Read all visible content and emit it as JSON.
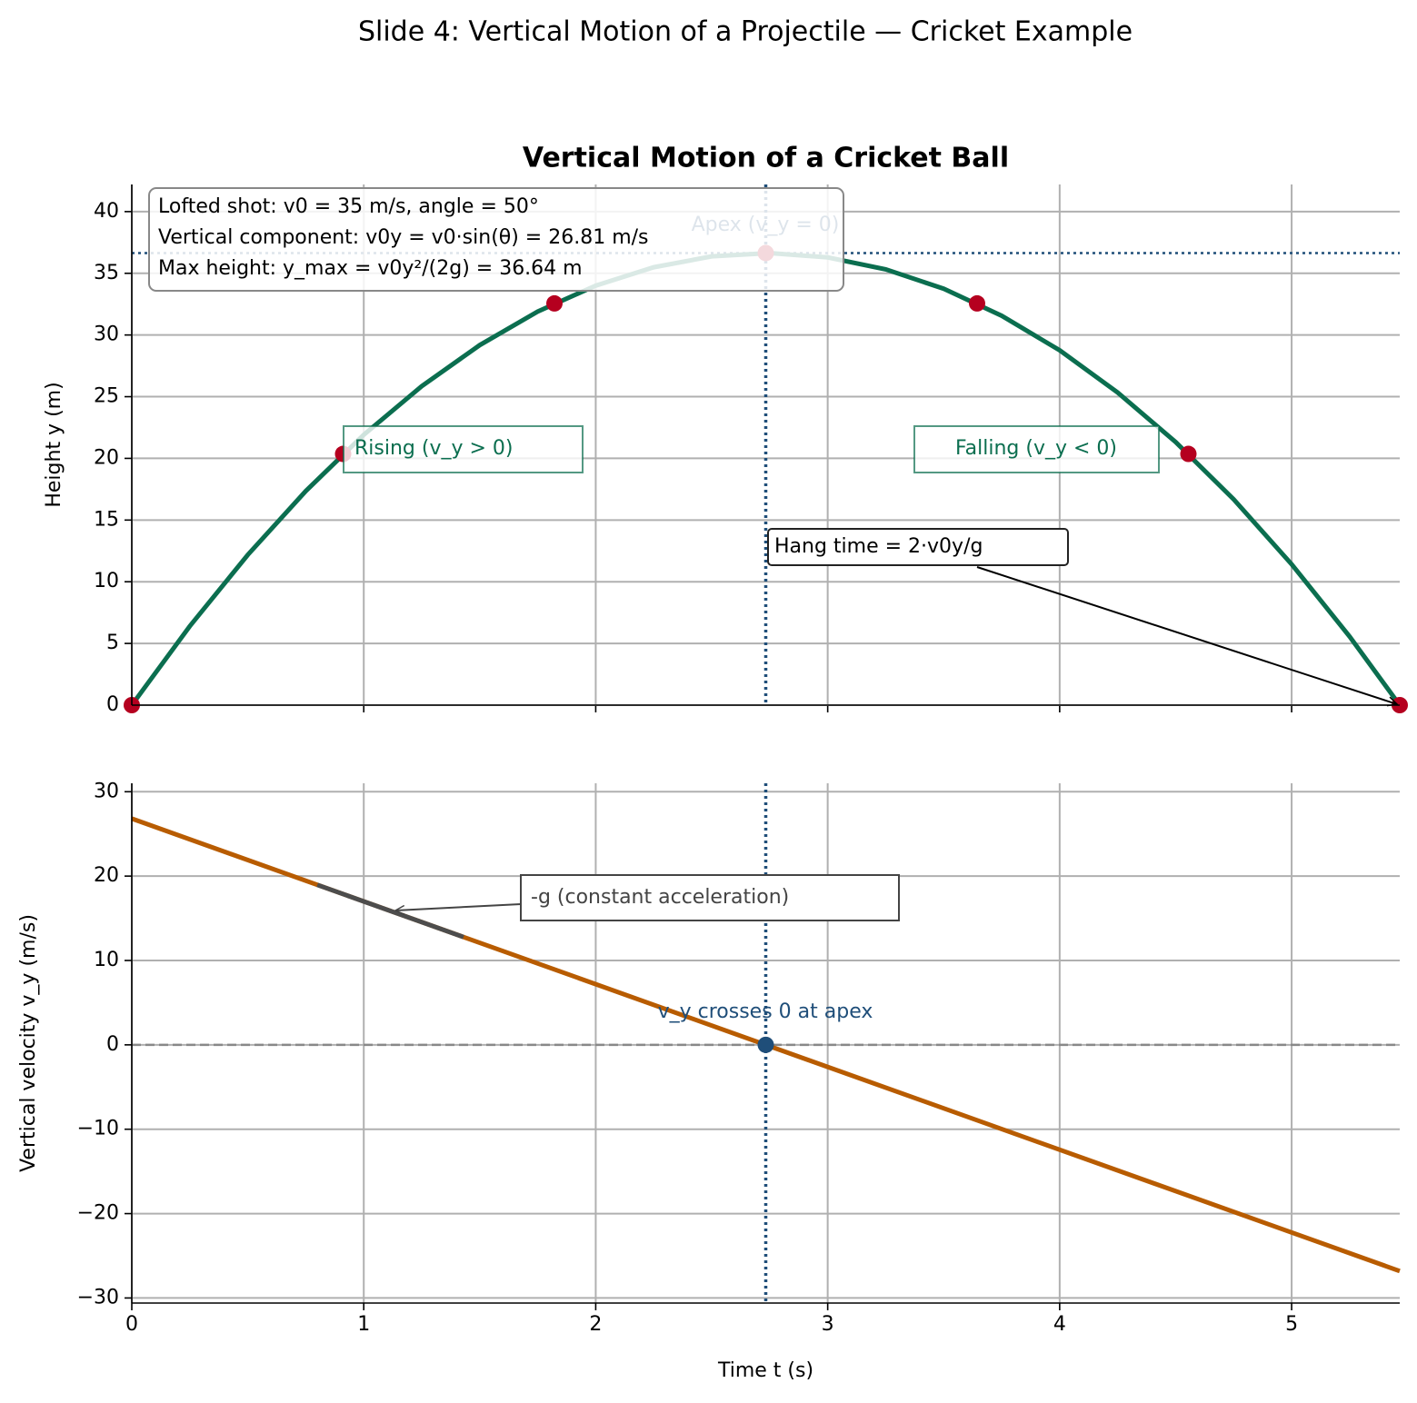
{
  "title": "Slide 4: Vertical Motion of a Projectile — Cricket Example",
  "chart_data": [
    {
      "type": "line",
      "title": "Vertical Motion of a Cricket Ball",
      "ylabel": "Height y (m)",
      "x": [
        0,
        0.25,
        0.5,
        0.75,
        1,
        1.25,
        1.5,
        1.75,
        2,
        2.25,
        2.5,
        2.75,
        3,
        3.25,
        3.5,
        3.75,
        4,
        4.25,
        4.5,
        4.75,
        5,
        5.25,
        5.466
      ],
      "series": [
        {
          "color": "#0b6e4f",
          "values": [
            0,
            6.4,
            12.18,
            17.35,
            21.91,
            25.85,
            29.18,
            31.9,
            34.0,
            35.49,
            36.37,
            36.64,
            36.29,
            35.32,
            33.75,
            31.56,
            28.76,
            25.34,
            21.32,
            16.68,
            11.42,
            5.56,
            0
          ]
        }
      ],
      "points": {
        "x": [
          0,
          0.911,
          1.822,
          2.733,
          3.644,
          4.555,
          5.466
        ],
        "y": [
          0,
          20.36,
          32.56,
          36.64,
          32.56,
          20.36,
          0
        ],
        "color": "#b5001f"
      },
      "hlines": [
        {
          "value": 36.64,
          "color": "#1f4e79",
          "style": "dotted"
        }
      ],
      "vlines": [
        {
          "value": 2.733,
          "color": "#1f4e79",
          "style": "dotted"
        }
      ],
      "xlim": [
        0,
        5.466
      ],
      "ylim": [
        0,
        42.2
      ],
      "xticks": [
        0,
        1,
        2,
        3,
        4,
        5
      ],
      "yticks": [
        0,
        5,
        10,
        15,
        20,
        25,
        30,
        35,
        40
      ],
      "grid": true,
      "info_box": [
        "Lofted shot: v0 = 35 m/s, angle = 50°",
        "Vertical component: v0y = v0·sin(θ) = 26.81 m/s",
        "Max height: y_max = v0y²/(2g) = 36.64 m"
      ],
      "annotations": {
        "apex": "Apex (v_y = 0)",
        "rising": "Rising (v_y > 0)",
        "falling": "Falling (v_y < 0)",
        "hang_time": "Hang time = 2·v0y/g"
      }
    },
    {
      "type": "line",
      "xlabel": "Time t (s)",
      "ylabel": "Vertical velocity v_y (m/s)",
      "x": [
        0,
        5.466
      ],
      "series": [
        {
          "color": "#b85c00",
          "values": [
            26.81,
            -26.81
          ]
        },
        {
          "color": "#4d4d4d",
          "x": [
            0.8,
            1.43
          ],
          "values": [
            18.96,
            12.78
          ]
        }
      ],
      "points": {
        "x": [
          2.733
        ],
        "y": [
          0
        ],
        "color": "#1f4e79"
      },
      "hlines": [
        {
          "value": 0,
          "color": "#888888",
          "style": "dashed"
        }
      ],
      "vlines": [
        {
          "value": 2.733,
          "color": "#1f4e79",
          "style": "dotted"
        }
      ],
      "xlim": [
        0,
        5.466
      ],
      "ylim": [
        -30.6,
        31
      ],
      "xticks": [
        0,
        1,
        2,
        3,
        4,
        5
      ],
      "yticks": [
        {
          "value": -30,
          "label": "−30"
        },
        {
          "value": -20,
          "label": "−20"
        },
        {
          "value": -10,
          "label": "−10"
        },
        0,
        10,
        20,
        30
      ],
      "grid": true,
      "annotations": {
        "slope": "-g (constant acceleration)",
        "zero_cross": "v_y crosses 0 at apex"
      }
    }
  ]
}
